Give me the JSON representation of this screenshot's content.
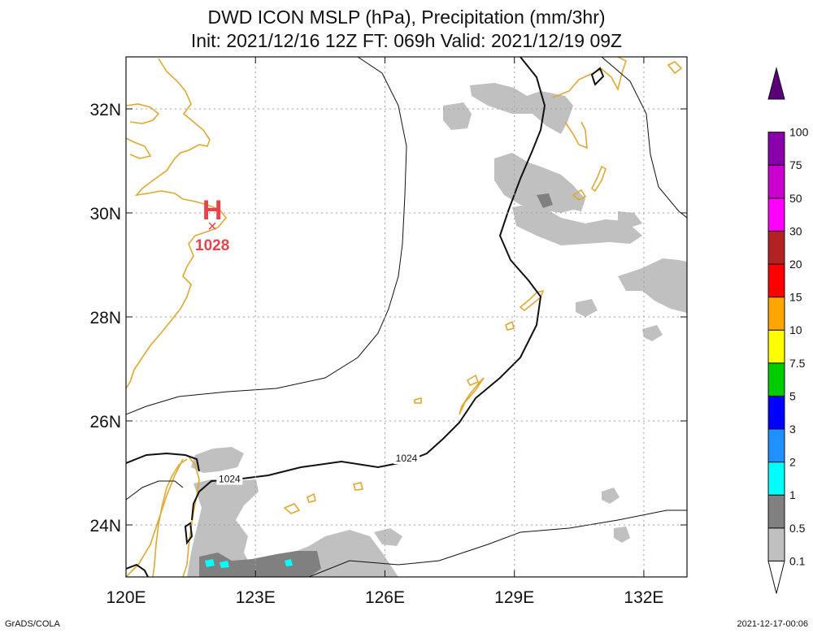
{
  "title_line1": "DWD ICON MSLP (hPa), Precipitation (mm/3hr)",
  "title_line2": "Init: 2021/12/16 12Z  FT: 069h  Valid: 2021/12/19 09Z",
  "map": {
    "lon_range": [
      120,
      133
    ],
    "lat_range": [
      23,
      33
    ],
    "x_ticks": [
      {
        "lon": 120,
        "label": "120E"
      },
      {
        "lon": 123,
        "label": "123E"
      },
      {
        "lon": 126,
        "label": "126E"
      },
      {
        "lon": 129,
        "label": "129E"
      },
      {
        "lon": 132,
        "label": "132E"
      }
    ],
    "y_ticks": [
      {
        "lat": 24,
        "label": "24N"
      },
      {
        "lat": 26,
        "label": "26N"
      },
      {
        "lat": 28,
        "label": "28N"
      },
      {
        "lat": 30,
        "label": "30N"
      },
      {
        "lat": 32,
        "label": "32N"
      }
    ],
    "high": {
      "symbol": "H",
      "value": "1028",
      "lon": 122.0,
      "lat": 29.75,
      "color": "#e8424a"
    },
    "isobar_labels": [
      {
        "text": "1024",
        "lon": 126.5,
        "lat": 25.25
      },
      {
        "text": "1024",
        "lon": 122.4,
        "lat": 24.85
      }
    ],
    "coast_color": "#e0a830",
    "grid": true
  },
  "colorbar": {
    "labels": [
      "0.1",
      "0.5",
      "1",
      "2",
      "3",
      "5",
      "7.5",
      "10",
      "15",
      "20",
      "30",
      "50",
      "75",
      "100"
    ],
    "colors": [
      "#c0c0c0",
      "#808080",
      "#00ffff",
      "#1e90ff",
      "#0000ff",
      "#00cc00",
      "#ffff00",
      "#ffa500",
      "#ff0000",
      "#b22222",
      "#ff00ff",
      "#cc00cc",
      "#8800aa",
      "#5a007a"
    ]
  },
  "footer_left": "GrADS/COLA",
  "footer_right": "2021-12-17-00:06"
}
